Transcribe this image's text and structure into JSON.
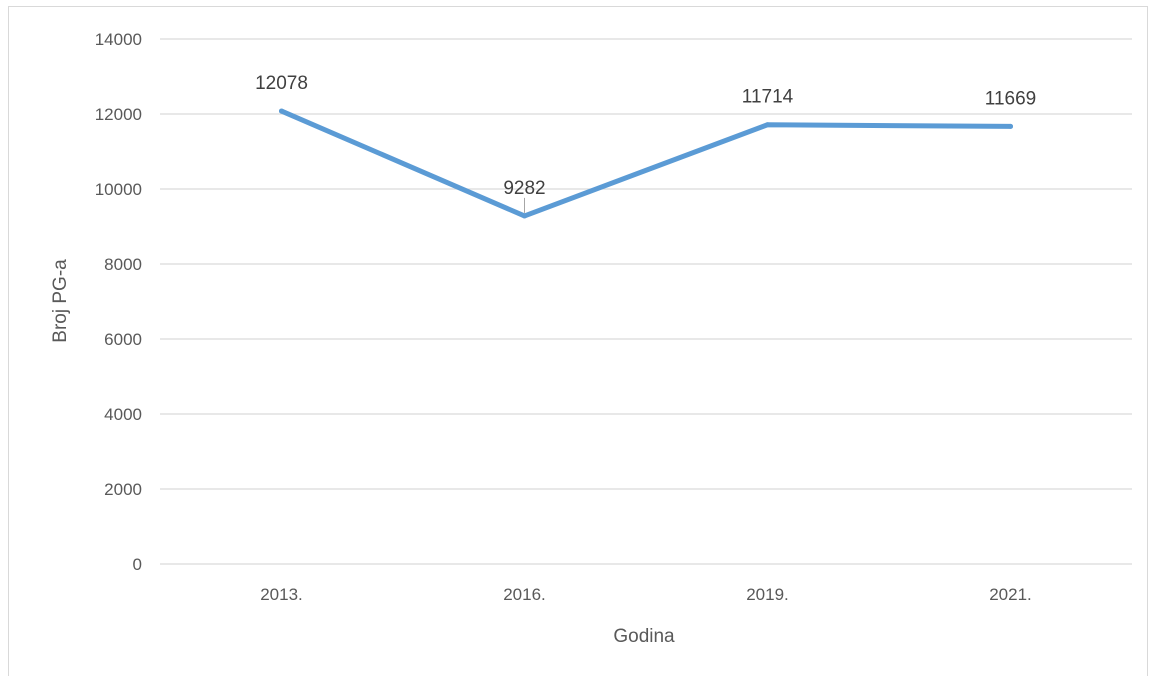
{
  "chart_data": {
    "type": "line",
    "title": "",
    "xlabel": "Godina",
    "ylabel": "Broj PG-a",
    "categories": [
      "2013.",
      "2016.",
      "2019.",
      "2021."
    ],
    "series": [
      {
        "values": [
          12078,
          9282,
          11714,
          11669
        ],
        "data_labels": [
          "12078",
          "9282",
          "11714",
          "11669"
        ]
      }
    ],
    "ylim": [
      0,
      14000
    ],
    "yticks": [
      "0",
      "2000",
      "4000",
      "6000",
      "8000",
      "10000",
      "12000",
      "14000"
    ],
    "grid": "horizontal",
    "legend": "none",
    "colors": {
      "line": "#5b9bd5",
      "grid": "#d9d9d9",
      "text": "#595959"
    }
  }
}
